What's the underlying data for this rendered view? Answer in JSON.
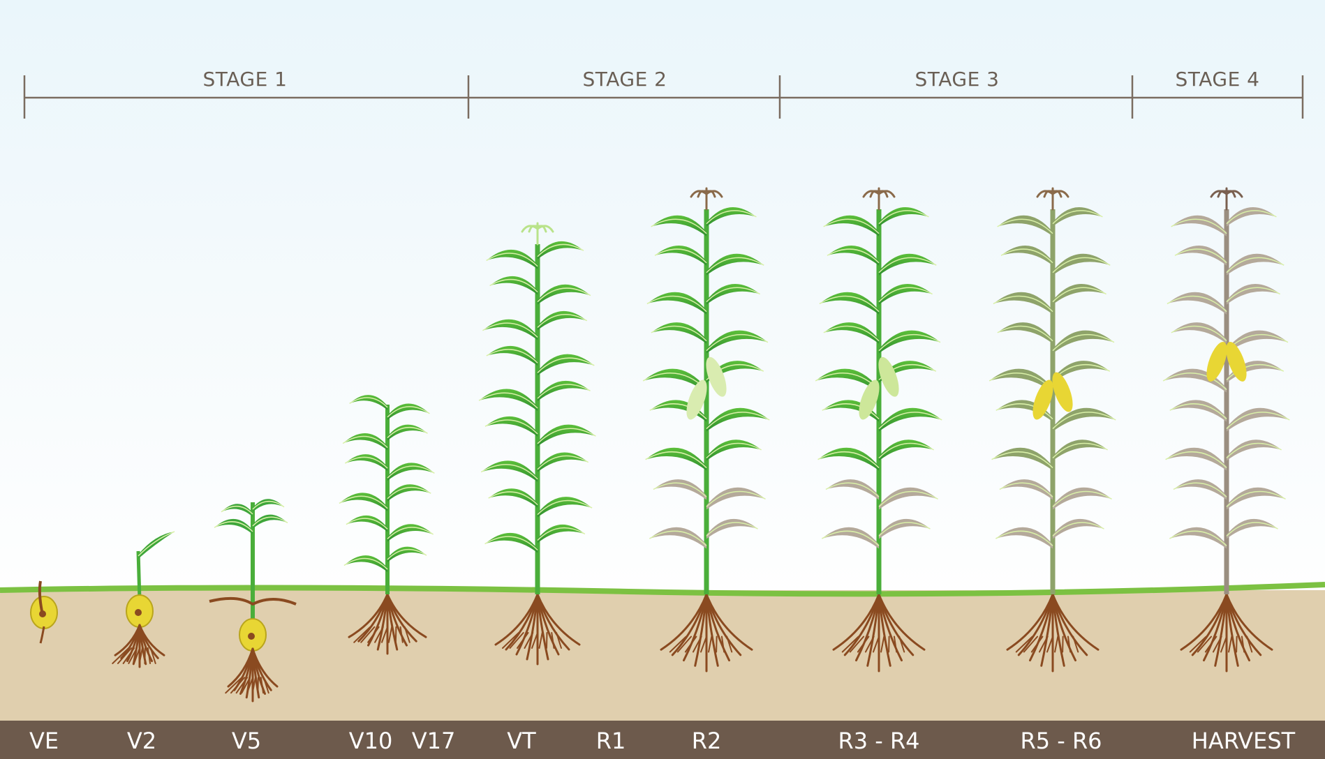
{
  "stages": [
    "STAGE 1",
    "STAGE 2",
    "STAGE 3",
    "STAGE 4"
  ],
  "growth_stages": [
    "VE",
    "V2",
    "V5",
    "V10",
    "V17",
    "VT",
    "R1",
    "R2",
    "R3 - R4",
    "R5 - R6",
    "HARVEST"
  ],
  "colors": {
    "sky_top": "#eaf6fb",
    "soil": "#e0cfae",
    "grass_line": "#7cc142",
    "leaf_green": "#3ea63a",
    "leaf_dry": "#b4a99a",
    "seed": "#e8d634",
    "root": "#8a4a20",
    "bar": "#6d5a4c"
  }
}
